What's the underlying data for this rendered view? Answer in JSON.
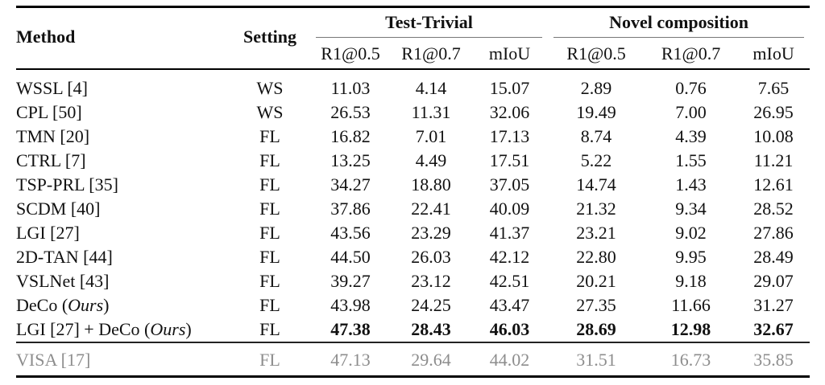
{
  "table": {
    "headers": {
      "method": "Method",
      "setting": "Setting",
      "group_test_trivial": "Test-Trivial",
      "group_novel_composition": "Novel composition",
      "sub_headers": [
        "R1@0.5",
        "R1@0.7",
        "mIoU",
        "R1@0.5",
        "R1@0.7",
        "mIoU"
      ]
    },
    "rows": [
      {
        "method_pre": "WSSL [4]",
        "method_italic": "",
        "method_post": "",
        "setting": "WS",
        "values": [
          "11.03",
          "4.14",
          "15.07",
          "2.89",
          "0.76",
          "7.65"
        ],
        "bold_values": false,
        "grayed": false
      },
      {
        "method_pre": "CPL [50]",
        "method_italic": "",
        "method_post": "",
        "setting": "WS",
        "values": [
          "26.53",
          "11.31",
          "32.06",
          "19.49",
          "7.00",
          "26.95"
        ],
        "bold_values": false,
        "grayed": false
      },
      {
        "method_pre": "TMN [20]",
        "method_italic": "",
        "method_post": "",
        "setting": "FL",
        "values": [
          "16.82",
          "7.01",
          "17.13",
          "8.74",
          "4.39",
          "10.08"
        ],
        "bold_values": false,
        "grayed": false
      },
      {
        "method_pre": "CTRL [7]",
        "method_italic": "",
        "method_post": "",
        "setting": "FL",
        "values": [
          "13.25",
          "4.49",
          "17.51",
          "5.22",
          "1.55",
          "11.21"
        ],
        "bold_values": false,
        "grayed": false
      },
      {
        "method_pre": "TSP-PRL [35]",
        "method_italic": "",
        "method_post": "",
        "setting": "FL",
        "values": [
          "34.27",
          "18.80",
          "37.05",
          "14.74",
          "1.43",
          "12.61"
        ],
        "bold_values": false,
        "grayed": false
      },
      {
        "method_pre": "SCDM [40]",
        "method_italic": "",
        "method_post": "",
        "setting": "FL",
        "values": [
          "37.86",
          "22.41",
          "40.09",
          "21.32",
          "9.34",
          "28.52"
        ],
        "bold_values": false,
        "grayed": false
      },
      {
        "method_pre": "LGI [27]",
        "method_italic": "",
        "method_post": "",
        "setting": "FL",
        "values": [
          "43.56",
          "23.29",
          "41.37",
          "23.21",
          "9.02",
          "27.86"
        ],
        "bold_values": false,
        "grayed": false
      },
      {
        "method_pre": "2D-TAN [44]",
        "method_italic": "",
        "method_post": "",
        "setting": "FL",
        "values": [
          "44.50",
          "26.03",
          "42.12",
          "22.80",
          "9.95",
          "28.49"
        ],
        "bold_values": false,
        "grayed": false
      },
      {
        "method_pre": "VSLNet [43]",
        "method_italic": "",
        "method_post": "",
        "setting": "FL",
        "values": [
          "39.27",
          "23.12",
          "42.51",
          "20.21",
          "9.18",
          "29.07"
        ],
        "bold_values": false,
        "grayed": false
      },
      {
        "method_pre": "DeCo (",
        "method_italic": "Ours",
        "method_post": ")",
        "setting": "FL",
        "values": [
          "43.98",
          "24.25",
          "43.47",
          "27.35",
          "11.66",
          "31.27"
        ],
        "bold_values": false,
        "grayed": false
      },
      {
        "method_pre": "LGI [27] + DeCo (",
        "method_italic": "Ours",
        "method_post": ")",
        "setting": "FL",
        "values": [
          "47.38",
          "28.43",
          "46.03",
          "28.69",
          "12.98",
          "32.67"
        ],
        "bold_values": true,
        "grayed": false
      },
      {
        "method_pre": "VISA [17]",
        "method_italic": "",
        "method_post": "",
        "setting": "FL",
        "values": [
          "47.13",
          "29.64",
          "44.02",
          "31.51",
          "16.73",
          "35.85"
        ],
        "bold_values": false,
        "grayed": true
      }
    ],
    "colors": {
      "text": "#111111",
      "grayed_text": "#8d8d8d",
      "rule": "#000000"
    }
  }
}
